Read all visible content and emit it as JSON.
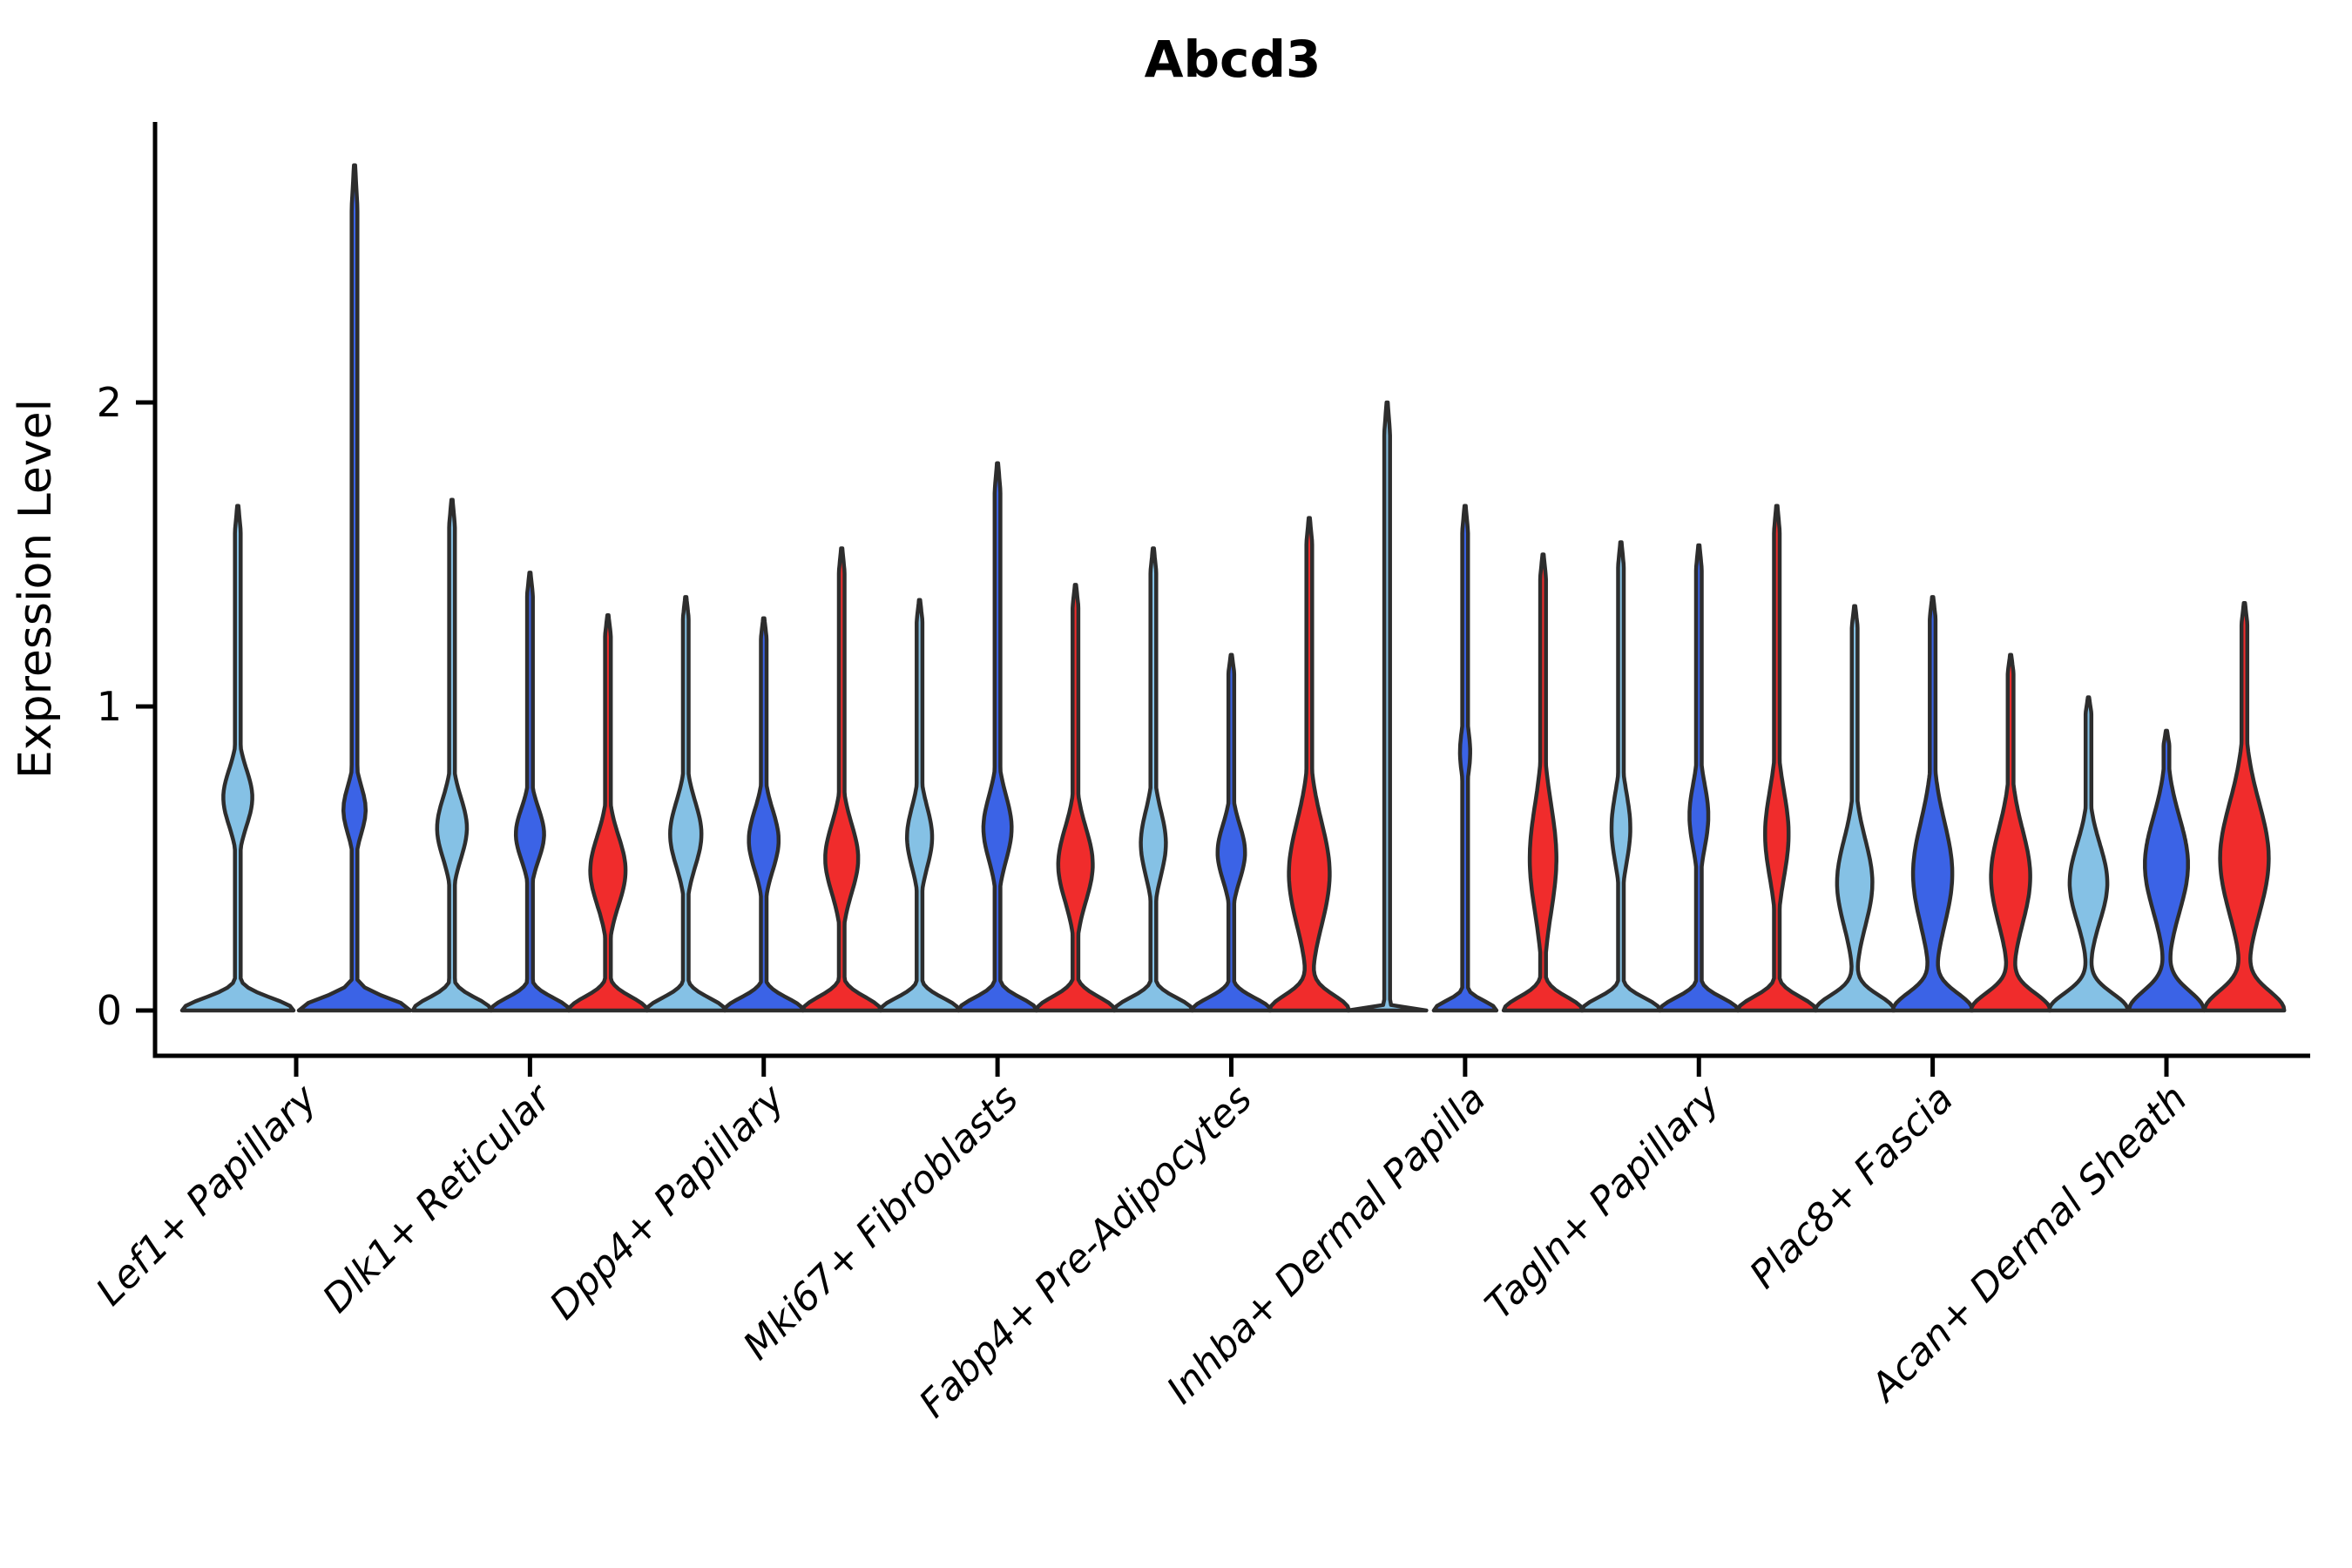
{
  "chart_data": {
    "type": "violin",
    "title": "Abcd3",
    "xlabel": "",
    "ylabel": "Expression Level",
    "yticks": [
      "0",
      "1",
      "2"
    ],
    "ytick_values": [
      0,
      1,
      2
    ],
    "ylim": [
      -0.15,
      2.92
    ],
    "grid": false,
    "legend": "none",
    "groups": [
      {
        "key": "light_blue",
        "color": "#85C1E5"
      },
      {
        "key": "dark_blue",
        "color": "#3B63E6"
      },
      {
        "key": "red",
        "color": "#F02C2C"
      }
    ],
    "outline_color": "#2d2d2d",
    "axis_color": "#000000",
    "categories": [
      {
        "label": "Lef1+ Papillary",
        "violins": [
          {
            "group": "light_blue",
            "max": 1.66,
            "bulge_center": 0.7,
            "bulge_sigma": 0.13,
            "bulge_width": 0.26,
            "base_width": 1.0,
            "base_sigma": 0.058
          },
          {
            "group": "dark_blue",
            "max": 2.78,
            "bulge_center": 0.66,
            "bulge_sigma": 0.11,
            "bulge_width": 0.2,
            "base_width": 1.0,
            "base_sigma": 0.058
          }
        ]
      },
      {
        "label": "Dlk1+ Reticular",
        "violins": [
          {
            "group": "light_blue",
            "max": 1.68,
            "bulge_center": 0.6,
            "bulge_sigma": 0.14,
            "bulge_width": 0.38,
            "base_width": 1.0,
            "base_sigma": 0.058
          },
          {
            "group": "dark_blue",
            "max": 1.44,
            "bulge_center": 0.58,
            "bulge_sigma": 0.12,
            "bulge_width": 0.36,
            "base_width": 1.0,
            "base_sigma": 0.058
          },
          {
            "group": "red",
            "max": 1.3,
            "bulge_center": 0.46,
            "bulge_sigma": 0.16,
            "bulge_width": 0.45,
            "base_width": 1.0,
            "base_sigma": 0.062
          }
        ]
      },
      {
        "label": "Dpp4+ Papillary",
        "violins": [
          {
            "group": "light_blue",
            "max": 1.36,
            "bulge_center": 0.58,
            "bulge_sigma": 0.15,
            "bulge_width": 0.4,
            "base_width": 1.0,
            "base_sigma": 0.058
          },
          {
            "group": "dark_blue",
            "max": 1.29,
            "bulge_center": 0.56,
            "bulge_sigma": 0.14,
            "bulge_width": 0.38,
            "base_width": 1.0,
            "base_sigma": 0.058
          },
          {
            "group": "red",
            "max": 1.52,
            "bulge_center": 0.5,
            "bulge_sigma": 0.16,
            "bulge_width": 0.42,
            "base_width": 1.0,
            "base_sigma": 0.062
          }
        ]
      },
      {
        "label": "Mki67+ Fibroblasts",
        "violins": [
          {
            "group": "light_blue",
            "max": 1.35,
            "bulge_center": 0.57,
            "bulge_sigma": 0.14,
            "bulge_width": 0.32,
            "base_width": 1.0,
            "base_sigma": 0.058
          },
          {
            "group": "dark_blue",
            "max": 1.8,
            "bulge_center": 0.6,
            "bulge_sigma": 0.15,
            "bulge_width": 0.36,
            "base_width": 1.0,
            "base_sigma": 0.058
          },
          {
            "group": "red",
            "max": 1.4,
            "bulge_center": 0.48,
            "bulge_sigma": 0.17,
            "bulge_width": 0.44,
            "base_width": 1.0,
            "base_sigma": 0.062
          }
        ]
      },
      {
        "label": "Fabp4+ Pre-Adipocytes",
        "violins": [
          {
            "group": "light_blue",
            "max": 1.52,
            "bulge_center": 0.55,
            "bulge_sigma": 0.15,
            "bulge_width": 0.32,
            "base_width": 1.0,
            "base_sigma": 0.058
          },
          {
            "group": "dark_blue",
            "max": 1.17,
            "bulge_center": 0.52,
            "bulge_sigma": 0.13,
            "bulge_width": 0.35,
            "base_width": 1.0,
            "base_sigma": 0.058
          },
          {
            "group": "red",
            "max": 1.62,
            "bulge_center": 0.45,
            "bulge_sigma": 0.24,
            "bulge_width": 0.52,
            "base_width": 1.0,
            "base_sigma": 0.07
          }
        ]
      },
      {
        "label": "Inhba+ Dermal Papilla",
        "violins": [
          {
            "group": "light_blue",
            "max": 2.0,
            "bulge_center": 0.5,
            "bulge_sigma": 0.1,
            "bulge_width": 0.0,
            "base_width": 1.0,
            "base_sigma": 0.012
          },
          {
            "group": "dark_blue",
            "max": 1.66,
            "bulge_center": 0.85,
            "bulge_sigma": 0.11,
            "bulge_width": 0.13,
            "base_width": 0.8,
            "base_sigma": 0.045
          },
          {
            "group": "red",
            "max": 1.5,
            "bulge_center": 0.5,
            "bulge_sigma": 0.25,
            "bulge_width": 0.34,
            "base_width": 1.0,
            "base_sigma": 0.062
          }
        ]
      },
      {
        "label": "Tagln+ Papillary",
        "violins": [
          {
            "group": "light_blue",
            "max": 1.54,
            "bulge_center": 0.6,
            "bulge_sigma": 0.16,
            "bulge_width": 0.24,
            "base_width": 1.0,
            "base_sigma": 0.058
          },
          {
            "group": "dark_blue",
            "max": 1.53,
            "bulge_center": 0.64,
            "bulge_sigma": 0.15,
            "bulge_width": 0.24,
            "base_width": 1.0,
            "base_sigma": 0.058
          },
          {
            "group": "red",
            "max": 1.66,
            "bulge_center": 0.58,
            "bulge_sigma": 0.2,
            "bulge_width": 0.3,
            "base_width": 1.0,
            "base_sigma": 0.062
          }
        ]
      },
      {
        "label": "Plac8+ Fascia",
        "violins": [
          {
            "group": "light_blue",
            "max": 1.33,
            "bulge_center": 0.42,
            "bulge_sigma": 0.2,
            "bulge_width": 0.45,
            "base_width": 1.0,
            "base_sigma": 0.07
          },
          {
            "group": "dark_blue",
            "max": 1.36,
            "bulge_center": 0.45,
            "bulge_sigma": 0.24,
            "bulge_width": 0.5,
            "base_width": 1.0,
            "base_sigma": 0.08
          },
          {
            "group": "red",
            "max": 1.17,
            "bulge_center": 0.44,
            "bulge_sigma": 0.22,
            "bulge_width": 0.5,
            "base_width": 1.0,
            "base_sigma": 0.08
          }
        ]
      },
      {
        "label": "Acan+ Dermal Sheath",
        "violins": [
          {
            "group": "light_blue",
            "max": 1.03,
            "bulge_center": 0.42,
            "bulge_sigma": 0.18,
            "bulge_width": 0.48,
            "base_width": 1.0,
            "base_sigma": 0.08
          },
          {
            "group": "dark_blue",
            "max": 0.92,
            "bulge_center": 0.48,
            "bulge_sigma": 0.22,
            "bulge_width": 0.55,
            "base_width": 0.95,
            "base_sigma": 0.09
          },
          {
            "group": "red",
            "max": 1.34,
            "bulge_center": 0.5,
            "bulge_sigma": 0.26,
            "bulge_width": 0.62,
            "base_width": 1.0,
            "base_sigma": 0.09
          }
        ]
      }
    ]
  }
}
